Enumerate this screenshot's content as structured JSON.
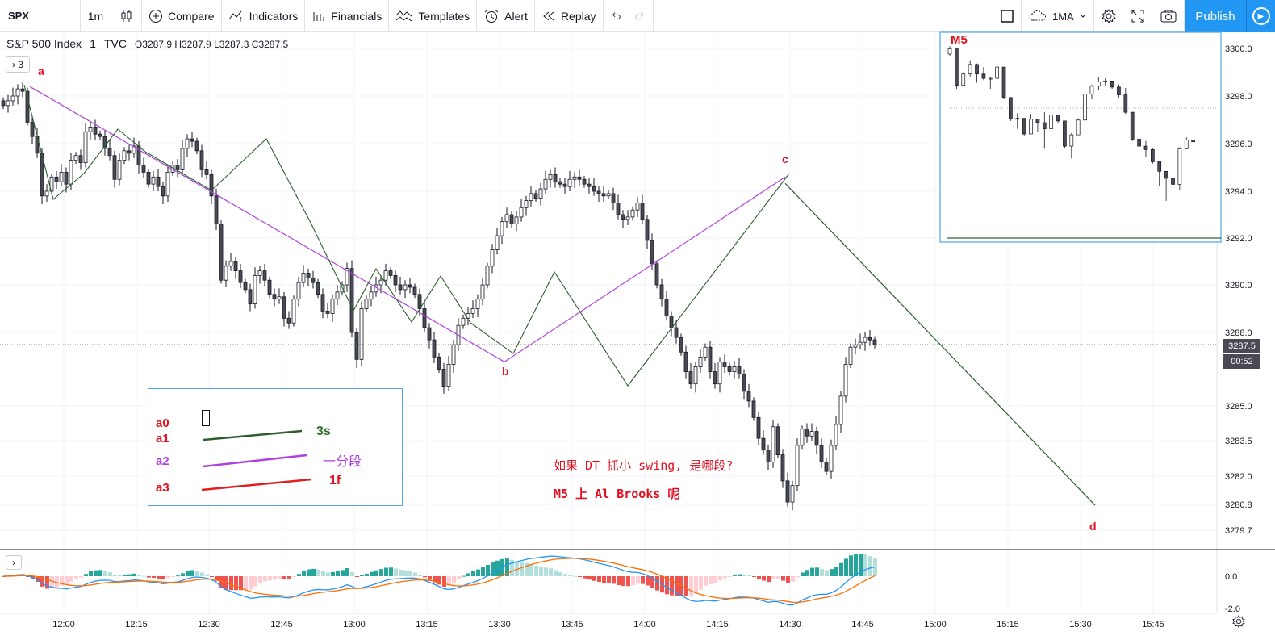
{
  "toolbar": {
    "symbol": "SPX",
    "interval": "1m",
    "compare": "Compare",
    "indicators": "Indicators",
    "financials": "Financials",
    "templates": "Templates",
    "alert": "Alert",
    "replay": "Replay",
    "ma_label": "1MA",
    "publish": "Publish"
  },
  "legend": {
    "name": "S&P 500 Index",
    "interval": "1",
    "source": "TVC",
    "open": "O3287.9",
    "high": "H3287.9",
    "low": "L3287.3",
    "close": "C3287.5",
    "indicator_count": "3"
  },
  "price_axis": {
    "ticks": [
      "3300.0",
      "3298.0",
      "3296.0",
      "3294.0",
      "3292.0",
      "3290.0",
      "3288.0",
      "3285.0",
      "3283.5",
      "3282.0",
      "3280.8",
      "3279.7"
    ],
    "current_price": "3287.5",
    "countdown": "00:52",
    "osc_ticks": [
      "0.0",
      "-2.0"
    ]
  },
  "time_axis": {
    "ticks": [
      "12:00",
      "12:15",
      "12:30",
      "12:45",
      "13:00",
      "13:15",
      "13:30",
      "13:45",
      "14:00",
      "14:15",
      "14:30",
      "14:45",
      "15:00",
      "15:15",
      "15:30",
      "15:45"
    ]
  },
  "annotations": {
    "point_a": "a",
    "point_b": "b",
    "point_c": "c",
    "point_d": "d",
    "inset_title": "M5",
    "text_line1": "如果 DT 抓小 swing, 是哪段?",
    "text_line2": "M5 上 Al Brooks 呢"
  },
  "key_box": {
    "a0": "a0",
    "a1": "a1",
    "a2": "a2",
    "a3": "a3",
    "a1_desc": "3s",
    "a2_desc": "一分段",
    "a3_desc": "1f"
  },
  "colors": {
    "up": "#ffffff",
    "down": "#4a4a55",
    "wick": "#131722",
    "a1_line": "#2e5e2e",
    "a2_line": "#b040e0",
    "a3_line": "#e02020",
    "annotation_red": "#e01020",
    "accent": "#2196f3"
  },
  "chart_data": {
    "type": "candlestick",
    "symbol": "SPX",
    "ylim": [
      3279.2,
      3301.0
    ],
    "swing_points": [
      {
        "label": "a",
        "time": "11:53",
        "price": 3298.4
      },
      {
        "label": "b",
        "time": "13:31",
        "price": 3286.8
      },
      {
        "label": "c",
        "time": "14:29",
        "price": 3294.6
      },
      {
        "label": "d",
        "time": "15:33",
        "price": 3280.9
      }
    ],
    "close_series": [
      3297.6,
      3297.8,
      3298.0,
      3298.3,
      3298.2,
      3296.9,
      3296.3,
      3295.6,
      3293.8,
      3294.0,
      3294.6,
      3294.4,
      3294.8,
      3294.3,
      3295.3,
      3295.5,
      3295.2,
      3296.5,
      3296.7,
      3296.4,
      3296.3,
      3295.8,
      3295.5,
      3294.5,
      3295.3,
      3295.7,
      3295.6,
      3295.9,
      3295.1,
      3294.8,
      3294.3,
      3294.6,
      3294.2,
      3293.8,
      3294.8,
      3295.1,
      3294.9,
      3295.8,
      3296.2,
      3296.1,
      3295.7,
      3294.9,
      3294.7,
      3293.8,
      3292.6,
      3290.2,
      3290.8,
      3291.0,
      3290.6,
      3290.1,
      3289.8,
      3289.2,
      3290.4,
      3290.6,
      3290.2,
      3289.6,
      3289.4,
      3289.5,
      3288.6,
      3288.4,
      3289.4,
      3290.1,
      3290.5,
      3290.3,
      3290.1,
      3289.6,
      3288.9,
      3288.8,
      3289.4,
      3289.7,
      3290.0,
      3290.7,
      3288.0,
      3286.9,
      3289.0,
      3289.4,
      3289.7,
      3290.0,
      3290.2,
      3290.6,
      3290.4,
      3290.0,
      3289.8,
      3290.0,
      3289.9,
      3289.6,
      3289.0,
      3288.2,
      3287.7,
      3287.0,
      3286.5,
      3285.8,
      3286.7,
      3287.5,
      3288.3,
      3288.6,
      3288.8,
      3289.0,
      3289.4,
      3290.0,
      3290.8,
      3291.5,
      3292.1,
      3292.7,
      3293.0,
      3292.6,
      3292.9,
      3293.3,
      3293.6,
      3293.9,
      3293.7,
      3294.1,
      3294.5,
      3294.7,
      3294.4,
      3294.3,
      3294.2,
      3294.5,
      3294.6,
      3294.5,
      3294.3,
      3294.2,
      3294.0,
      3293.9,
      3293.8,
      3293.9,
      3293.5,
      3293.0,
      3292.8,
      3292.9,
      3293.2,
      3293.5,
      3292.8,
      3291.9,
      3290.9,
      3290.0,
      3289.4,
      3288.7,
      3288.2,
      3287.8,
      3287.2,
      3286.4,
      3285.9,
      3286.6,
      3287.0,
      3287.4,
      3286.4,
      3285.9,
      3286.8,
      3286.6,
      3286.4,
      3286.6,
      3286.3,
      3285.6,
      3285.2,
      3284.5,
      3283.6,
      3283.1,
      3282.6,
      3284.1,
      3282.9,
      3281.8,
      3280.9,
      3281.6,
      3283.3,
      3284.0,
      3283.7,
      3283.9,
      3283.3,
      3282.6,
      3282.2,
      3283.3,
      3284.2,
      3285.4,
      3286.7,
      3287.4,
      3287.5,
      3287.6,
      3287.8,
      3287.7,
      3287.5
    ]
  }
}
